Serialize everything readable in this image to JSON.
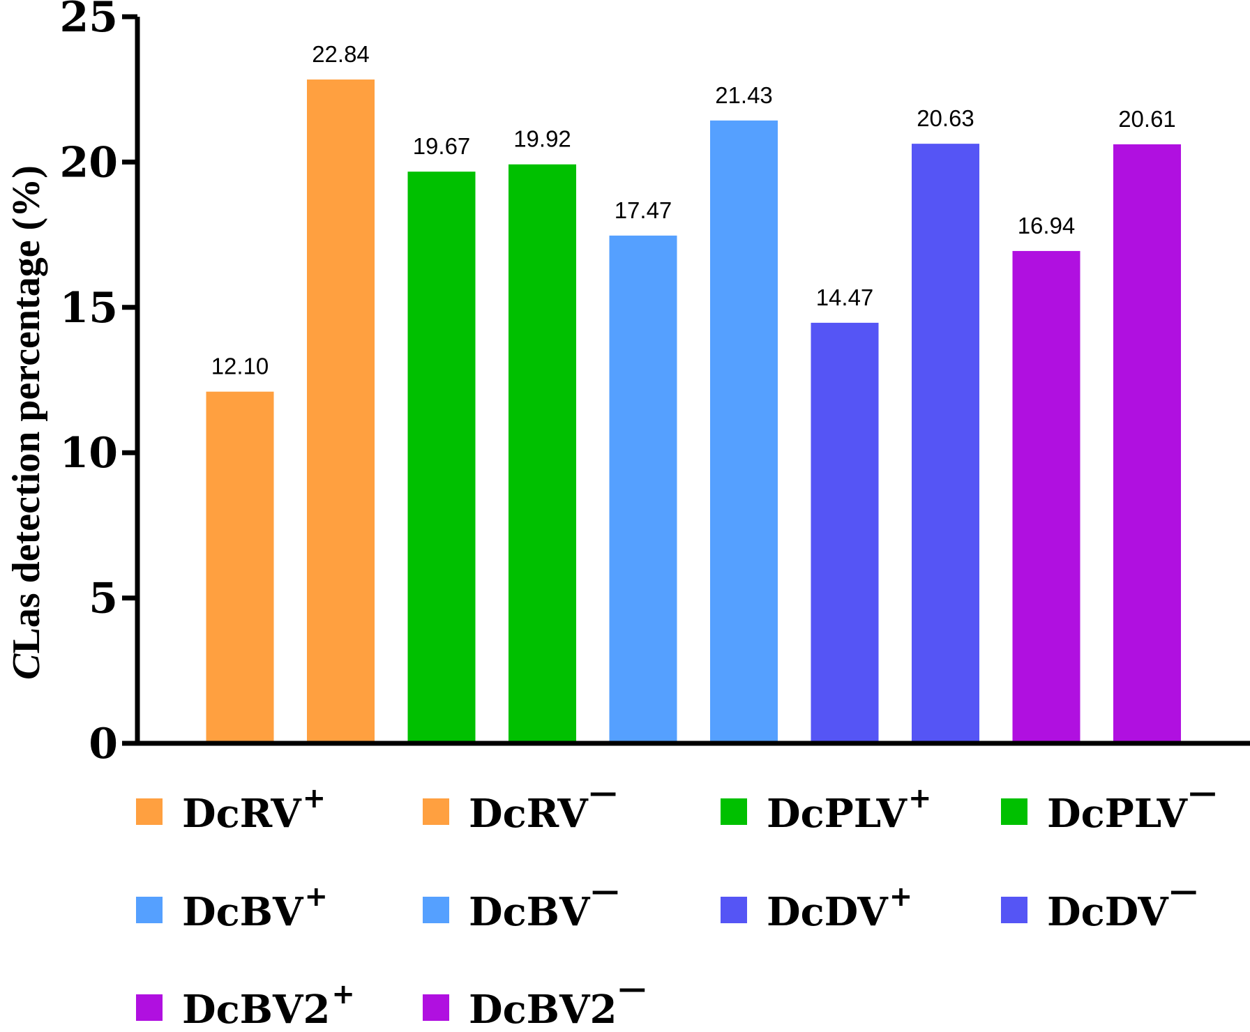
{
  "chart_data": {
    "type": "bar",
    "title": "",
    "xlabel": "",
    "ylabel_italic": "C",
    "ylabel_rest": "Las detection percentage (%)",
    "ylim": [
      0,
      25
    ],
    "yticks": [
      "0",
      "5",
      "10",
      "15",
      "20",
      "25"
    ],
    "grid": false,
    "legend_position": "bottom",
    "categories": [
      "DcRV+",
      "DcRV−",
      "DcPLV+",
      "DcPLV−",
      "DcBV+",
      "DcBV−",
      "DcDV+",
      "DcDV−",
      "DcBV2+",
      "DcBV2−"
    ],
    "values": [
      12.1,
      22.84,
      19.67,
      19.92,
      17.47,
      21.43,
      14.47,
      20.63,
      16.94,
      20.61
    ],
    "data_labels": [
      "12.10",
      "22.84",
      "19.67",
      "19.92",
      "17.47",
      "21.43",
      "14.47",
      "20.63",
      "16.94",
      "20.61"
    ],
    "colors": [
      "#FFA040",
      "#FFA040",
      "#00C000",
      "#00C000",
      "#55A0FF",
      "#55A0FF",
      "#5555F5",
      "#5555F5",
      "#B010E0",
      "#B010E0"
    ],
    "legend": [
      {
        "base": "DcRV",
        "sup": "+",
        "color": "#FFA040"
      },
      {
        "base": "DcRV",
        "sup": "—",
        "color": "#FFA040"
      },
      {
        "base": "DcPLV",
        "sup": "+",
        "color": "#00C000"
      },
      {
        "base": "DcPLV",
        "sup": "—",
        "color": "#00C000"
      },
      {
        "base": "DcBV",
        "sup": "+",
        "color": "#55A0FF"
      },
      {
        "base": "DcBV",
        "sup": "—",
        "color": "#55A0FF"
      },
      {
        "base": "DcDV",
        "sup": "+",
        "color": "#5555F5"
      },
      {
        "base": "DcDV",
        "sup": "—",
        "color": "#5555F5"
      },
      {
        "base": "DcBV2",
        "sup": "+",
        "color": "#B010E0"
      },
      {
        "base": "DcBV2",
        "sup": "—",
        "color": "#B010E0"
      }
    ]
  }
}
